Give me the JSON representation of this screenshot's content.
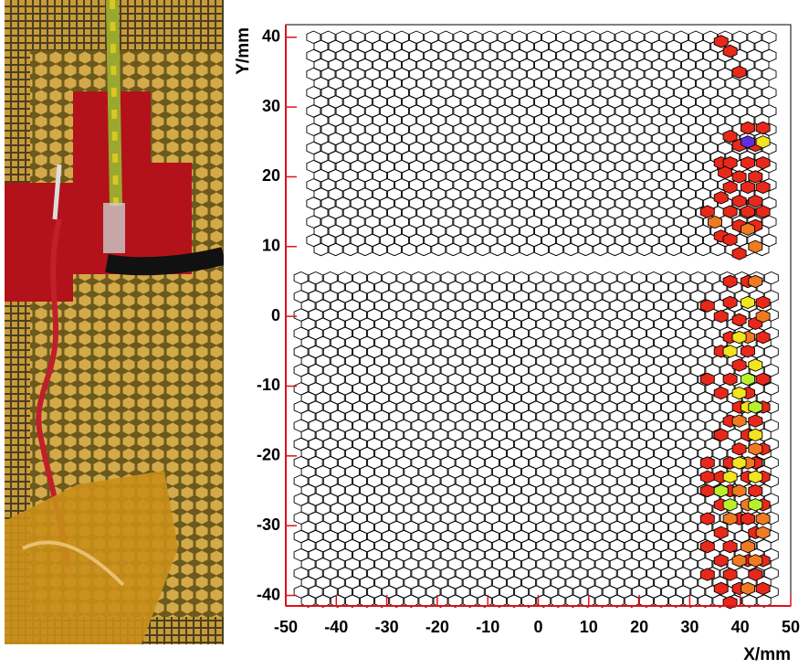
{
  "chart_data": {
    "type": "hexmap",
    "xlabel": "X/mm",
    "ylabel": "Y/mm",
    "xlim": [
      -50,
      50
    ],
    "ylim": [
      -41.5,
      41.8
    ],
    "xticks": [
      -50,
      -40,
      -30,
      -20,
      -10,
      0,
      10,
      20,
      30,
      40,
      50
    ],
    "yticks": [
      -40,
      -30,
      -20,
      -10,
      0,
      10,
      20,
      30,
      40
    ],
    "series": [
      {
        "color": "#e8281a",
        "x": [
          36.2,
          38,
          39.8,
          41.5,
          44.5,
          38,
          39.8,
          43,
          36.2,
          38,
          41.5,
          44.5,
          37,
          39.8,
          43,
          38,
          41.5,
          44.5,
          36.2,
          39.8,
          43,
          38,
          41.5,
          44.5,
          33.5,
          39.8,
          43,
          36.2,
          38,
          39.8,
          38,
          41.5,
          33.5,
          38,
          44.5,
          36.2,
          39.8,
          43,
          38,
          44.5,
          36.2,
          41.5,
          39.8,
          33.5,
          38,
          44.5,
          36.2,
          41.5,
          39.8,
          44.5,
          38,
          43,
          36.2,
          41.5,
          39.8,
          44.5,
          33.5,
          38,
          43,
          33.5,
          36.2,
          41.5,
          44.5,
          33.5,
          38,
          43,
          36.2,
          44.5,
          33.5,
          39.8,
          41.5,
          36.2,
          43,
          38,
          33.5,
          36.2,
          41.5,
          44.5,
          33.5,
          38,
          43,
          36.2,
          39.8,
          44.5,
          38
        ],
        "y": [
          39.4,
          38,
          35,
          27,
          27,
          25.8,
          24.5,
          24.5,
          22,
          22,
          22,
          22,
          20.6,
          20,
          20,
          18.5,
          18.5,
          18.5,
          17,
          16.5,
          16.5,
          15,
          15,
          15,
          15,
          13,
          13,
          11.5,
          11,
          9,
          5,
          5,
          1.5,
          2,
          2,
          0,
          -0.5,
          -1,
          -3,
          -3,
          -5,
          -5,
          -7,
          -9,
          -9,
          -9,
          -11,
          -11,
          -13,
          -13,
          -15,
          -15,
          -17,
          -17,
          -19,
          -19,
          -21,
          -21,
          -21,
          -23,
          -23,
          -23,
          -23,
          -25,
          -25,
          -25,
          -27,
          -27,
          -29,
          -29,
          -29,
          -31,
          -31,
          -33,
          -33,
          -35,
          -35,
          -35,
          -37,
          -37,
          -37,
          -39,
          -39,
          -39,
          -41
        ]
      },
      {
        "color": "#f07a22",
        "x": [
          35,
          41.5,
          43,
          43,
          44.5,
          41.5,
          39.8,
          41.5,
          43,
          39.8,
          44.5,
          38,
          41.5,
          39.8,
          41.5,
          44.5,
          43,
          41.5
        ],
        "y": [
          13.5,
          12.5,
          10,
          5,
          0,
          -3,
          -15,
          -21,
          -19,
          -25,
          -29,
          -29,
          -33,
          -35,
          -39,
          -31,
          -35,
          -27
        ]
      },
      {
        "color": "#f2e41e",
        "x": [
          44.5,
          41.5,
          38,
          39.8,
          43,
          41.5,
          43,
          39.8,
          38,
          43,
          39.8
        ],
        "y": [
          25,
          2,
          -5,
          -3,
          -7,
          -13,
          -17,
          -21,
          -23,
          -23,
          -11
        ]
      },
      {
        "color": "#b8f030",
        "x": [
          41.5,
          43,
          36.2,
          43,
          38
        ],
        "y": [
          -9,
          -13,
          -25,
          -27,
          -27
        ]
      },
      {
        "color": "#5a30e0",
        "x": [
          41.5
        ],
        "y": [
          25
        ]
      }
    ]
  }
}
